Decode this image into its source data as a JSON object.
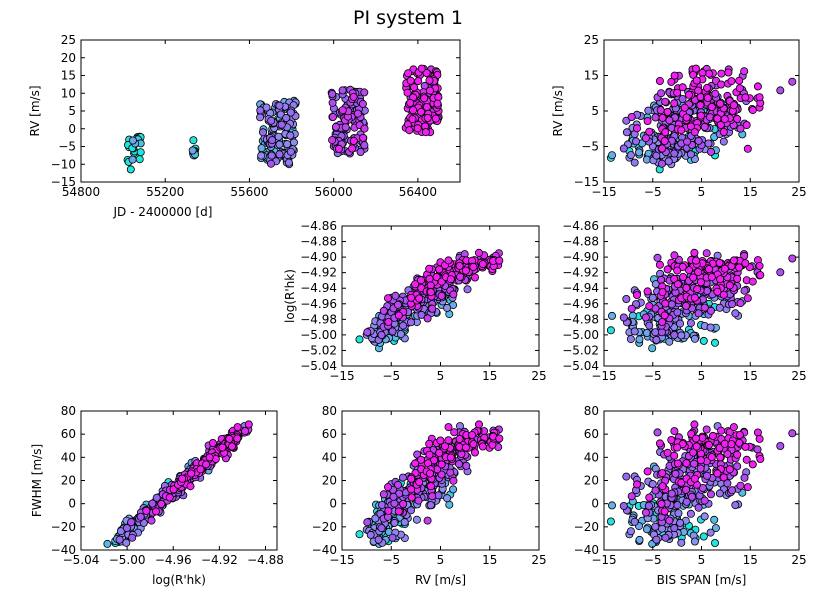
{
  "chart_data": {
    "type": "scatter",
    "title": "PI system 1",
    "colormap": [
      "#1fe5dc",
      "#8e8ef0",
      "#9a5cf0",
      "#f020f0"
    ],
    "panels": [
      {
        "id": "rv-vs-jd",
        "xlabel": "JD - 2400000 [d]",
        "ylabel": "RV [m/s]",
        "xlim": [
          54800,
          56600
        ],
        "ylim": [
          -15,
          25
        ],
        "xticks": [
          54800,
          55200,
          55600,
          56000,
          56400
        ],
        "yticks": [
          -15,
          -10,
          -5,
          0,
          5,
          10,
          15,
          20,
          25
        ],
        "xticklabels": [
          "54800",
          "55200",
          "55600",
          "56000",
          "56400"
        ],
        "yticklabels": [
          "−15",
          "−10",
          "−5",
          "0",
          "5",
          "10",
          "15",
          "20",
          "25"
        ],
        "series": "jd_clusters"
      },
      {
        "id": "rv-vs-bis",
        "xlabel": "",
        "ylabel": "RV [m/s]",
        "xlim": [
          -15,
          25
        ],
        "ylim": [
          -15,
          25
        ],
        "xticks": [
          -15,
          -5,
          5,
          15,
          25
        ],
        "yticks": [
          -15,
          -5,
          5,
          15,
          25
        ],
        "xticklabels": [
          "−15",
          "−5",
          "5",
          "15",
          "25"
        ],
        "yticklabels": [
          "−15",
          "−5",
          "5",
          "15",
          "25"
        ],
        "series": "rv_bis"
      },
      {
        "id": "logrhk-vs-rv",
        "xlabel": "",
        "ylabel": "log(R'hk)",
        "xlim": [
          -15,
          25
        ],
        "ylim": [
          -5.04,
          -4.86
        ],
        "xticks": [
          -15,
          -5,
          5,
          15,
          25
        ],
        "yticks": [
          -5.04,
          -5.02,
          -5.0,
          -4.98,
          -4.96,
          -4.94,
          -4.92,
          -4.9,
          -4.88,
          -4.86
        ],
        "xticklabels": [
          "−15",
          "−5",
          "5",
          "15",
          "25"
        ],
        "yticklabels": [
          "−5.04",
          "−5.02",
          "−5.00",
          "−4.98",
          "−4.96",
          "−4.94",
          "−4.92",
          "−4.90",
          "−4.88",
          "−4.86"
        ],
        "series": "rhk_rv"
      },
      {
        "id": "logrhk-vs-bis",
        "xlabel": "",
        "ylabel": "",
        "xlim": [
          -15,
          25
        ],
        "ylim": [
          -5.04,
          -4.86
        ],
        "xticks": [
          -15,
          -5,
          5,
          15,
          25
        ],
        "yticks": [
          -5.04,
          -5.02,
          -5.0,
          -4.98,
          -4.96,
          -4.94,
          -4.92,
          -4.9,
          -4.88,
          -4.86
        ],
        "xticklabels": [
          "−15",
          "−5",
          "5",
          "15",
          "25"
        ],
        "yticklabels": [
          "−5.04",
          "−5.02",
          "−5.00",
          "−4.98",
          "−4.96",
          "−4.94",
          "−4.92",
          "−4.90",
          "−4.88",
          "−4.86"
        ],
        "series": "rhk_bis"
      },
      {
        "id": "fwhm-vs-logrhk",
        "xlabel": "log(R'hk)",
        "ylabel": "FWHM [m/s]",
        "xlim": [
          -5.04,
          -4.87
        ],
        "ylim": [
          -40,
          80
        ],
        "xticks": [
          -5.04,
          -5.0,
          -4.96,
          -4.92,
          -4.88
        ],
        "yticks": [
          -40,
          -20,
          0,
          20,
          40,
          60,
          80
        ],
        "xticklabels": [
          "−5.04",
          "−5.00",
          "−4.96",
          "−4.92",
          "−4.88"
        ],
        "yticklabels": [
          "−40",
          "−20",
          "0",
          "20",
          "40",
          "60",
          "80"
        ],
        "series": "fwhm_rhk"
      },
      {
        "id": "fwhm-vs-rv",
        "xlabel": "RV [m/s]",
        "ylabel": "",
        "xlim": [
          -15,
          25
        ],
        "ylim": [
          -40,
          80
        ],
        "xticks": [
          -15,
          -5,
          5,
          15,
          25
        ],
        "yticks": [
          -40,
          -20,
          0,
          20,
          40,
          60,
          80
        ],
        "xticklabels": [
          "−15",
          "−5",
          "5",
          "15",
          "25"
        ],
        "yticklabels": [
          "−40",
          "−20",
          "0",
          "20",
          "40",
          "60",
          "80"
        ],
        "series": "fwhm_rv"
      },
      {
        "id": "fwhm-vs-bis",
        "xlabel": "BIS SPAN [m/s]",
        "ylabel": "",
        "xlim": [
          -15,
          25
        ],
        "ylim": [
          -40,
          80
        ],
        "xticks": [
          -15,
          -5,
          5,
          15,
          25
        ],
        "yticks": [
          -40,
          -20,
          0,
          20,
          40,
          60,
          80
        ],
        "xticklabels": [
          "−15",
          "−5",
          "5",
          "15",
          "25"
        ],
        "yticklabels": [
          "−40",
          "−20",
          "0",
          "20",
          "40",
          "60",
          "80"
        ],
        "series": "fwhm_bis"
      }
    ],
    "observation_clusters": [
      {
        "jd_min": 55020,
        "jd_max": 55085,
        "rv_min": -12,
        "rv_max": -2,
        "color_index": 0
      },
      {
        "jd_min": 55330,
        "jd_max": 55345,
        "rv_min": -8,
        "rv_max": -3,
        "color_index": 0
      },
      {
        "jd_min": 55650,
        "jd_max": 55820,
        "rv_min": -10,
        "rv_max": 8,
        "color_index": 1
      },
      {
        "jd_min": 55990,
        "jd_max": 56150,
        "rv_min": -7,
        "rv_max": 11,
        "color_index": 2
      },
      {
        "jd_min": 56340,
        "jd_max": 56500,
        "rv_min": -1,
        "rv_max": 17,
        "color_index": 3
      }
    ]
  }
}
